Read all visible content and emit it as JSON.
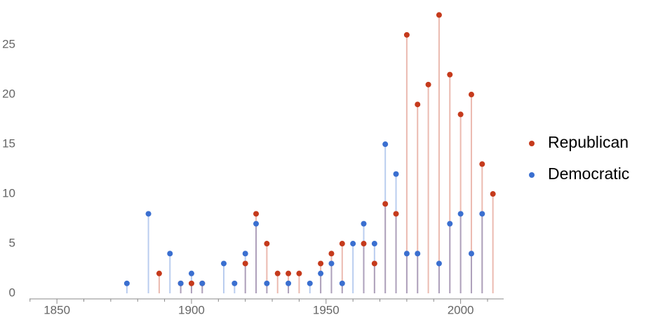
{
  "chart_data": {
    "type": "stem",
    "series": [
      {
        "name": "Republican",
        "color": "#c53a1c",
        "x": [
          1888,
          1896,
          1900,
          1904,
          1920,
          1924,
          1928,
          1932,
          1936,
          1940,
          1948,
          1952,
          1956,
          1964,
          1968,
          1972,
          1976,
          1980,
          1984,
          1988,
          1992,
          1996,
          2000,
          2004,
          2008,
          2012
        ],
        "values": [
          2,
          1,
          1,
          1,
          3,
          8,
          5,
          2,
          2,
          2,
          3,
          4,
          5,
          5,
          3,
          9,
          8,
          26,
          19,
          21,
          28,
          22,
          18,
          20,
          13,
          10
        ]
      },
      {
        "name": "Democratic",
        "color": "#3a6fd0",
        "x": [
          1876,
          1884,
          1892,
          1896,
          1900,
          1904,
          1912,
          1916,
          1920,
          1924,
          1928,
          1936,
          1944,
          1948,
          1952,
          1956,
          1960,
          1964,
          1968,
          1972,
          1976,
          1980,
          1984,
          1992,
          1996,
          2000,
          2004,
          2008
        ],
        "values": [
          1,
          8,
          4,
          1,
          2,
          1,
          3,
          1,
          4,
          7,
          1,
          1,
          1,
          2,
          3,
          1,
          5,
          7,
          5,
          15,
          12,
          4,
          4,
          3,
          7,
          8,
          4,
          8
        ]
      }
    ],
    "xlim": [
      1839.8,
      2016
    ],
    "xticks": [
      1850,
      1900,
      1950,
      2000
    ],
    "xminorticks": [
      1840,
      1860,
      1870,
      1880,
      1890,
      1910,
      1920,
      1930,
      1940,
      1960,
      1970,
      1980,
      1990,
      2010
    ],
    "ylim": [
      -0.56,
      28.1
    ],
    "yticks": [
      0,
      5,
      10,
      15,
      20,
      25
    ],
    "legend": "right"
  }
}
